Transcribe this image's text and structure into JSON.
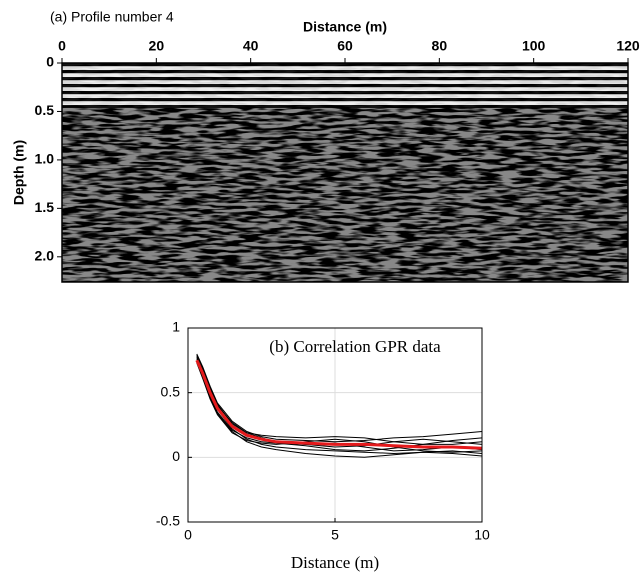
{
  "chart_data": [
    {
      "type": "image",
      "title": "(a) Profile number 4",
      "x_label": "Distance (m)",
      "y_label": "Depth (m)",
      "xlim": [
        0,
        120
      ],
      "xticks": [
        0,
        20,
        40,
        60,
        80,
        100,
        120
      ],
      "ylim": [
        0,
        2.26
      ],
      "yticks": [
        0,
        0.5,
        {
          "value": 1,
          "label": "1.0"
        },
        1.5,
        {
          "value": 2,
          "label": "2.0"
        }
      ]
    },
    {
      "type": "line",
      "title": "(b) Correlation GPR data",
      "x_label": "Distance (m)",
      "xlim": [
        0,
        10
      ],
      "xticks": [
        0,
        5,
        10
      ],
      "ylim": [
        -0.5,
        1
      ],
      "yticks": [
        -0.5,
        0,
        0.5,
        1
      ],
      "grid": true,
      "x": [
        0.3,
        0.5,
        0.75,
        1,
        1.5,
        2,
        2.5,
        3,
        4,
        5,
        6,
        7,
        8,
        9,
        10
      ],
      "series": [
        {
          "color": "#000000",
          "values": [
            0.8,
            0.7,
            0.55,
            0.42,
            0.28,
            0.2,
            0.16,
            0.14,
            0.13,
            0.12,
            0.13,
            0.15,
            0.16,
            0.18,
            0.2
          ]
        },
        {
          "color": "#000000",
          "values": [
            0.78,
            0.66,
            0.5,
            0.37,
            0.22,
            0.14,
            0.1,
            0.08,
            0.06,
            0.05,
            0.04,
            0.03,
            0.04,
            0.05,
            0.03
          ]
        },
        {
          "color": "#000000",
          "values": [
            0.76,
            0.68,
            0.53,
            0.4,
            0.27,
            0.19,
            0.17,
            0.16,
            0.15,
            0.16,
            0.15,
            0.12,
            0.1,
            0.1,
            0.12
          ]
        },
        {
          "color": "#000000",
          "values": [
            0.74,
            0.62,
            0.46,
            0.34,
            0.2,
            0.12,
            0.08,
            0.06,
            0.03,
            0.01,
            0.0,
            0.02,
            0.04,
            0.03,
            0.01
          ]
        },
        {
          "color": "#000000",
          "values": [
            0.79,
            0.69,
            0.54,
            0.41,
            0.26,
            0.19,
            0.15,
            0.12,
            0.1,
            0.08,
            0.09,
            0.12,
            0.14,
            0.12,
            0.1
          ]
        },
        {
          "color": "#000000",
          "values": [
            0.75,
            0.63,
            0.47,
            0.35,
            0.21,
            0.15,
            0.12,
            0.11,
            0.1,
            0.11,
            0.08,
            0.05,
            0.06,
            0.08,
            0.06
          ]
        },
        {
          "color": "#000000",
          "values": [
            0.77,
            0.67,
            0.52,
            0.39,
            0.25,
            0.18,
            0.14,
            0.11,
            0.09,
            0.06,
            0.05,
            0.07,
            0.1,
            0.13,
            0.15
          ]
        },
        {
          "color": "#000000",
          "values": [
            0.73,
            0.61,
            0.45,
            0.33,
            0.19,
            0.13,
            0.11,
            0.1,
            0.12,
            0.14,
            0.12,
            0.08,
            0.05,
            0.04,
            0.05
          ]
        },
        {
          "color": "#e41a1c",
          "values": [
            0.75,
            0.65,
            0.5,
            0.38,
            0.24,
            0.17,
            0.14,
            0.12,
            0.11,
            0.1,
            0.1,
            0.09,
            0.08,
            0.08,
            0.07
          ]
        }
      ]
    }
  ]
}
